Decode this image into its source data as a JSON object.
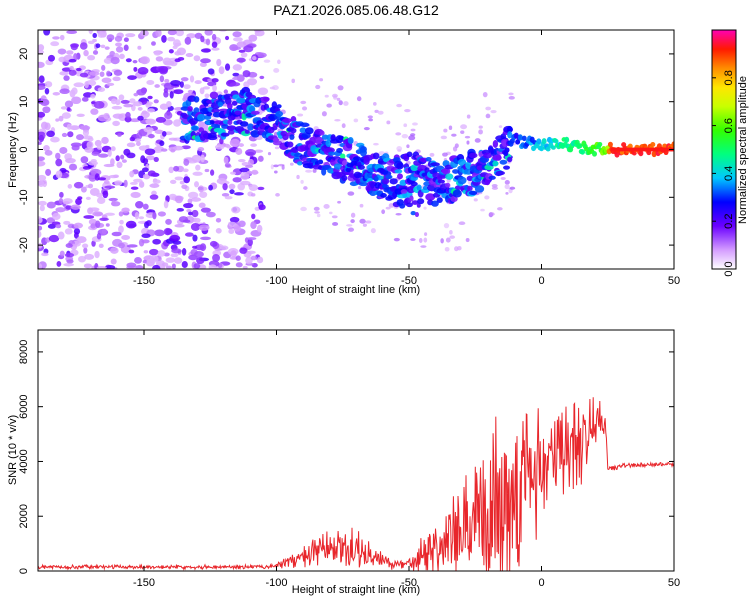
{
  "title": "PAZ1.2026.085.06.48.G12",
  "chart_data": [
    {
      "type": "heatmap",
      "title": "PAZ1.2026.085.06.48.G12",
      "xlabel": "Height of straight line (km)",
      "ylabel": "Frequency (Hz)",
      "xlim": [
        -190,
        50
      ],
      "ylim": [
        -25,
        25
      ],
      "xticks": [
        -150,
        -100,
        -50,
        0,
        50
      ],
      "yticks": [
        -20,
        -10,
        0,
        10,
        20
      ],
      "ridge": {
        "description_points": [
          {
            "x": -135,
            "y": 6
          },
          {
            "x": -110,
            "y": 8
          },
          {
            "x": -100,
            "y": 5
          },
          {
            "x": -90,
            "y": 1
          },
          {
            "x": -80,
            "y": -1
          },
          {
            "x": -70,
            "y": -3
          },
          {
            "x": -60,
            "y": -6
          },
          {
            "x": -50,
            "y": -5
          },
          {
            "x": -40,
            "y": -7
          },
          {
            "x": -30,
            "y": -6
          },
          {
            "x": -20,
            "y": -3
          },
          {
            "x": -10,
            "y": 2
          },
          {
            "x": 0,
            "y": 1
          },
          {
            "x": 10,
            "y": 1
          },
          {
            "x": 20,
            "y": 0
          },
          {
            "x": 50,
            "y": 0
          }
        ]
      },
      "colorbar": {
        "label": "Normalized spectral amplitude",
        "range": [
          0,
          1
        ],
        "ticks": [
          "0.0",
          "0.2",
          "0.4",
          "0.6",
          "0.8"
        ],
        "tick_values": [
          0.0,
          0.2,
          0.4,
          0.6,
          0.8
        ]
      }
    },
    {
      "type": "line",
      "xlabel": "Height of straight line (km)",
      "ylabel": "SNR (10 * v/v)",
      "xlim": [
        -190,
        50
      ],
      "ylim": [
        0,
        8800
      ],
      "xticks": [
        -150,
        -100,
        -50,
        0,
        50
      ],
      "yticks": [
        0,
        2000,
        4000,
        6000,
        8000
      ],
      "series": [
        {
          "name": "SNR",
          "color": "#e8262b",
          "envelope": [
            {
              "x": -190,
              "base": 150,
              "amp": 80
            },
            {
              "x": -105,
              "base": 150,
              "amp": 90
            },
            {
              "x": -100,
              "base": 200,
              "amp": 120
            },
            {
              "x": -90,
              "base": 500,
              "amp": 500
            },
            {
              "x": -80,
              "base": 800,
              "amp": 900
            },
            {
              "x": -70,
              "base": 800,
              "amp": 900
            },
            {
              "x": -62,
              "base": 400,
              "amp": 450
            },
            {
              "x": -52,
              "base": 200,
              "amp": 200
            },
            {
              "x": -45,
              "base": 700,
              "amp": 900
            },
            {
              "x": -35,
              "base": 1100,
              "amp": 1700
            },
            {
              "x": -25,
              "base": 1500,
              "amp": 2600
            },
            {
              "x": -17,
              "base": 2500,
              "amp": 4200
            },
            {
              "x": -13,
              "base": 3000,
              "amp": 5500
            },
            {
              "x": -8,
              "base": 3300,
              "amp": 3700
            },
            {
              "x": 0,
              "base": 3800,
              "amp": 2900
            },
            {
              "x": 10,
              "base": 4500,
              "amp": 2300
            },
            {
              "x": 20,
              "base": 5200,
              "amp": 1600
            },
            {
              "x": 24,
              "base": 5600,
              "amp": 900
            },
            {
              "x": 25,
              "base": 3700,
              "amp": 200
            },
            {
              "x": 30,
              "base": 3850,
              "amp": 120
            },
            {
              "x": 50,
              "base": 3900,
              "amp": 80
            }
          ]
        }
      ]
    }
  ]
}
